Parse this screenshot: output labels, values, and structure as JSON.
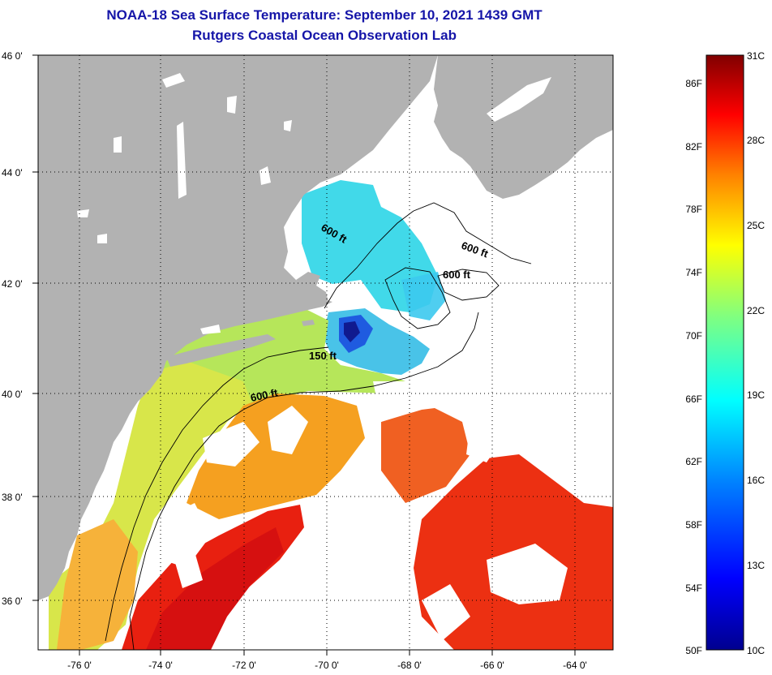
{
  "header": {
    "title": "NOAA-18 Sea Surface Temperature:  September 10, 2021 1439 GMT",
    "subtitle": "Rutgers Coastal Ocean Observation Lab"
  },
  "map": {
    "lat_labels": [
      "46 0'",
      "44 0'",
      "42 0'",
      "40 0'",
      "38 0'",
      "36 0'"
    ],
    "lon_labels": [
      "-76 0'",
      "-74 0'",
      "-72 0'",
      "-70 0'",
      "-68 0'",
      "-66 0'",
      "-64 0'"
    ],
    "extent": {
      "lon": [
        -77,
        -63.5
      ],
      "lat": [
        35,
        46
      ]
    },
    "contour_labels": [
      "600 ft",
      "600 ft",
      "600 ft",
      "150 ft",
      "600 ft"
    ],
    "land_color": "#b2b2b2",
    "cloud_color": "#ffffff"
  },
  "colorbar": {
    "fahrenheit_labels": [
      "86F",
      "82F",
      "78F",
      "74F",
      "70F",
      "66F",
      "62F",
      "58F",
      "54F",
      "50F"
    ],
    "celsius_labels": [
      "31C",
      "28C",
      "25C",
      "22C",
      "19C",
      "16C",
      "13C",
      "10C"
    ],
    "range_c": [
      10,
      31
    ],
    "colors": [
      "#00008f",
      "#0000ff",
      "#0080ff",
      "#00ffff",
      "#80ff80",
      "#ffff00",
      "#ff8000",
      "#ff0000",
      "#800000"
    ]
  }
}
